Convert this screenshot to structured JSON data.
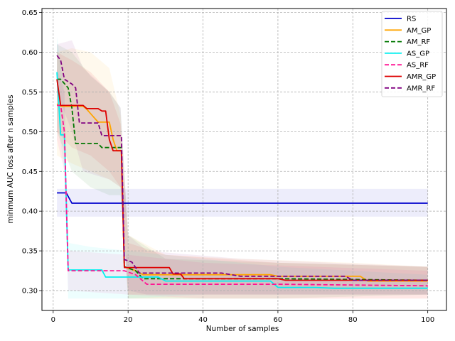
{
  "chart_data": {
    "type": "line",
    "title": "",
    "xlabel": "Number of samples",
    "ylabel": "minmum AUC loss after n samples",
    "xlim": [
      -3,
      105
    ],
    "ylim": [
      0.275,
      0.655
    ],
    "xticks": [
      0,
      20,
      40,
      60,
      80,
      100
    ],
    "yticks": [
      0.3,
      0.35,
      0.4,
      0.45,
      0.5,
      0.55,
      0.6,
      0.65
    ],
    "grid": true,
    "legend_position": "top-right",
    "series": [
      {
        "name": "RS",
        "color": "#0000cc",
        "dash": "solid",
        "points": [
          [
            1,
            0.423
          ],
          [
            3.5,
            0.423
          ],
          [
            5,
            0.41
          ],
          [
            100,
            0.41
          ]
        ],
        "band": {
          "upper": [
            [
              1,
              0.428
            ],
            [
              100,
              0.428
            ]
          ],
          "lower": [
            [
              1,
              0.393
            ],
            [
              100,
              0.393
            ]
          ]
        }
      },
      {
        "name": "AM_GP",
        "color": "#ffa500",
        "dash": "solid",
        "points": [
          [
            1,
            0.535
          ],
          [
            2,
            0.532
          ],
          [
            8,
            0.532
          ],
          [
            9,
            0.528
          ],
          [
            12,
            0.512
          ],
          [
            15,
            0.512
          ],
          [
            16,
            0.49
          ],
          [
            17,
            0.476
          ],
          [
            18.2,
            0.476
          ],
          [
            19,
            0.33
          ],
          [
            22,
            0.325
          ],
          [
            24,
            0.32
          ],
          [
            44,
            0.32
          ],
          [
            58,
            0.32
          ],
          [
            60,
            0.318
          ],
          [
            82,
            0.318
          ],
          [
            84,
            0.312
          ],
          [
            100,
            0.312
          ]
        ],
        "band": {
          "upper": [
            [
              1,
              0.6
            ],
            [
              5,
              0.605
            ],
            [
              10,
              0.6
            ],
            [
              15,
              0.58
            ],
            [
              18,
              0.52
            ],
            [
              20,
              0.37
            ],
            [
              30,
              0.345
            ],
            [
              50,
              0.34
            ],
            [
              80,
              0.335
            ],
            [
              100,
              0.33
            ]
          ],
          "lower": [
            [
              1,
              0.47
            ],
            [
              5,
              0.46
            ],
            [
              10,
              0.45
            ],
            [
              15,
              0.44
            ],
            [
              18,
              0.43
            ],
            [
              20,
              0.29
            ],
            [
              30,
              0.29
            ],
            [
              50,
              0.29
            ],
            [
              80,
              0.29
            ],
            [
              100,
              0.29
            ]
          ]
        }
      },
      {
        "name": "AM_RF",
        "color": "#007700",
        "dash": "dashed",
        "points": [
          [
            1,
            0.566
          ],
          [
            2,
            0.566
          ],
          [
            4,
            0.555
          ],
          [
            5,
            0.53
          ],
          [
            6,
            0.485
          ],
          [
            12,
            0.485
          ],
          [
            13,
            0.48
          ],
          [
            18.2,
            0.48
          ],
          [
            19,
            0.33
          ],
          [
            22,
            0.325
          ],
          [
            24,
            0.315
          ],
          [
            34,
            0.315
          ],
          [
            60,
            0.315
          ],
          [
            100,
            0.313
          ]
        ],
        "band": {
          "upper": [
            [
              1,
              0.61
            ],
            [
              5,
              0.6
            ],
            [
              10,
              0.57
            ],
            [
              15,
              0.55
            ],
            [
              18,
              0.53
            ],
            [
              20,
              0.37
            ],
            [
              30,
              0.34
            ],
            [
              60,
              0.335
            ],
            [
              100,
              0.33
            ]
          ],
          "lower": [
            [
              1,
              0.5
            ],
            [
              5,
              0.45
            ],
            [
              10,
              0.43
            ],
            [
              15,
              0.42
            ],
            [
              18,
              0.42
            ],
            [
              20,
              0.29
            ],
            [
              30,
              0.29
            ],
            [
              60,
              0.29
            ],
            [
              100,
              0.295
            ]
          ]
        }
      },
      {
        "name": "AS_GP",
        "color": "#00f0f0",
        "dash": "solid",
        "points": [
          [
            1,
            0.575
          ],
          [
            2,
            0.496
          ],
          [
            3,
            0.496
          ],
          [
            4,
            0.326
          ],
          [
            13,
            0.326
          ],
          [
            14,
            0.317
          ],
          [
            28,
            0.317
          ],
          [
            30,
            0.312
          ],
          [
            58,
            0.312
          ],
          [
            60,
            0.304
          ],
          [
            70,
            0.304
          ],
          [
            75,
            0.303
          ],
          [
            100,
            0.303
          ]
        ],
        "band": {
          "upper": [
            [
              1,
              0.62
            ],
            [
              3,
              0.55
            ],
            [
              4,
              0.36
            ],
            [
              10,
              0.355
            ],
            [
              20,
              0.35
            ],
            [
              40,
              0.34
            ],
            [
              60,
              0.33
            ],
            [
              100,
              0.32
            ]
          ],
          "lower": [
            [
              1,
              0.52
            ],
            [
              3,
              0.45
            ],
            [
              4,
              0.29
            ],
            [
              10,
              0.29
            ],
            [
              20,
              0.29
            ],
            [
              40,
              0.295
            ],
            [
              60,
              0.295
            ],
            [
              100,
              0.295
            ]
          ]
        }
      },
      {
        "name": "AS_RF",
        "color": "#ff1493",
        "dash": "dashed",
        "points": [
          [
            1,
            0.533
          ],
          [
            2,
            0.533
          ],
          [
            3,
            0.5
          ],
          [
            4,
            0.325
          ],
          [
            18.5,
            0.325
          ],
          [
            19,
            0.325
          ],
          [
            22,
            0.32
          ],
          [
            25,
            0.308
          ],
          [
            60,
            0.308
          ],
          [
            100,
            0.306
          ]
        ],
        "band": {
          "upper": [
            [
              1,
              0.58
            ],
            [
              3,
              0.55
            ],
            [
              4,
              0.35
            ],
            [
              20,
              0.345
            ],
            [
              40,
              0.335
            ],
            [
              100,
              0.325
            ]
          ],
          "lower": [
            [
              1,
              0.49
            ],
            [
              3,
              0.45
            ],
            [
              4,
              0.3
            ],
            [
              20,
              0.295
            ],
            [
              40,
              0.29
            ],
            [
              100,
              0.29
            ]
          ]
        }
      },
      {
        "name": "AMR_GP",
        "color": "#dd0000",
        "dash": "solid",
        "points": [
          [
            1,
            0.566
          ],
          [
            2,
            0.533
          ],
          [
            8,
            0.533
          ],
          [
            9,
            0.529
          ],
          [
            12,
            0.529
          ],
          [
            13,
            0.526
          ],
          [
            14,
            0.526
          ],
          [
            15,
            0.49
          ],
          [
            16,
            0.476
          ],
          [
            18.2,
            0.476
          ],
          [
            19,
            0.329
          ],
          [
            31,
            0.329
          ],
          [
            32,
            0.321
          ],
          [
            34,
            0.321
          ],
          [
            35,
            0.315
          ],
          [
            60,
            0.315
          ],
          [
            62,
            0.313
          ],
          [
            100,
            0.313
          ]
        ],
        "band": {
          "upper": [
            [
              1,
              0.6
            ],
            [
              5,
              0.59
            ],
            [
              10,
              0.575
            ],
            [
              15,
              0.55
            ],
            [
              18,
              0.51
            ],
            [
              20,
              0.36
            ],
            [
              30,
              0.345
            ],
            [
              60,
              0.335
            ],
            [
              100,
              0.33
            ]
          ],
          "lower": [
            [
              1,
              0.5
            ],
            [
              5,
              0.48
            ],
            [
              10,
              0.47
            ],
            [
              15,
              0.45
            ],
            [
              18,
              0.43
            ],
            [
              20,
              0.295
            ],
            [
              30,
              0.295
            ],
            [
              60,
              0.295
            ],
            [
              100,
              0.295
            ]
          ]
        }
      },
      {
        "name": "AMR_RF",
        "color": "#800080",
        "dash": "dashed",
        "points": [
          [
            1,
            0.596
          ],
          [
            2,
            0.59
          ],
          [
            3,
            0.566
          ],
          [
            5,
            0.56
          ],
          [
            6,
            0.555
          ],
          [
            7,
            0.511
          ],
          [
            12,
            0.511
          ],
          [
            13,
            0.495
          ],
          [
            18.2,
            0.495
          ],
          [
            19,
            0.339
          ],
          [
            21,
            0.336
          ],
          [
            23,
            0.322
          ],
          [
            45,
            0.322
          ],
          [
            50,
            0.318
          ],
          [
            78,
            0.318
          ],
          [
            80,
            0.313
          ],
          [
            100,
            0.313
          ]
        ],
        "band": {
          "upper": [
            [
              1,
              0.61
            ],
            [
              5,
              0.615
            ],
            [
              8,
              0.58
            ],
            [
              15,
              0.55
            ],
            [
              18,
              0.53
            ],
            [
              20,
              0.37
            ],
            [
              25,
              0.35
            ],
            [
              50,
              0.34
            ],
            [
              100,
              0.33
            ]
          ],
          "lower": [
            [
              1,
              0.55
            ],
            [
              5,
              0.5
            ],
            [
              8,
              0.45
            ],
            [
              15,
              0.44
            ],
            [
              18,
              0.43
            ],
            [
              20,
              0.3
            ],
            [
              25,
              0.295
            ],
            [
              50,
              0.295
            ],
            [
              100,
              0.295
            ]
          ]
        }
      }
    ]
  }
}
